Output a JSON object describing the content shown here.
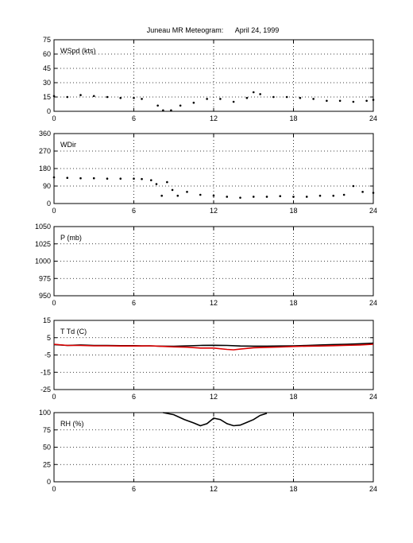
{
  "title": "Juneau MR Meteogram:      April 24, 1999",
  "chart_data": [
    {
      "type": "scatter",
      "label": "WSpd (kts)",
      "ylim": [
        0,
        75
      ],
      "yticks": [
        "0",
        "15",
        "30",
        "45",
        "60",
        "75"
      ],
      "xlim": [
        0,
        24
      ],
      "xticks": [
        "0",
        "6",
        "12",
        "18",
        "24"
      ],
      "grid": "dotted",
      "series": [
        {
          "color": "#000000",
          "x": [
            0,
            1,
            2,
            3,
            4,
            5,
            6,
            6.6,
            7.8,
            8.2,
            8.8,
            9.5,
            10.5,
            11.5,
            12.5,
            13.5,
            14.5,
            15,
            15.5,
            16.5,
            17.5,
            18.5,
            19.5,
            20.5,
            21.5,
            22.5,
            23.5,
            24
          ],
          "y": [
            16,
            15,
            17,
            16,
            15,
            14,
            14,
            13,
            6,
            1,
            1,
            6,
            9,
            13,
            13,
            10,
            14,
            20,
            18,
            15,
            15,
            14,
            13,
            11,
            11,
            10,
            11,
            12
          ]
        }
      ]
    },
    {
      "type": "scatter",
      "label": "WDir",
      "ylim": [
        0,
        360
      ],
      "yticks": [
        "0",
        "90",
        "180",
        "270",
        "360"
      ],
      "xlim": [
        0,
        24
      ],
      "xticks": [
        "0",
        "6",
        "12",
        "18",
        "24"
      ],
      "grid": "dotted",
      "series": [
        {
          "color": "#000000",
          "x": [
            0,
            1,
            2,
            3,
            4,
            5,
            6,
            6.6,
            7.3,
            7.7,
            8.1,
            8.5,
            8.9,
            9.3,
            10,
            11,
            12,
            13,
            14,
            15,
            16,
            17,
            18,
            19,
            20,
            21,
            21.8,
            22.5,
            23.2,
            24
          ],
          "y": [
            135,
            132,
            130,
            130,
            128,
            128,
            128,
            126,
            120,
            100,
            40,
            110,
            70,
            40,
            60,
            45,
            40,
            35,
            30,
            35,
            35,
            38,
            35,
            35,
            40,
            40,
            45,
            90,
            60,
            55
          ]
        }
      ]
    },
    {
      "type": "line",
      "label": "P (mb)",
      "ylim": [
        950,
        1050
      ],
      "yticks": [
        "950",
        "975",
        "1000",
        "1025",
        "1050"
      ],
      "xlim": [
        0,
        24
      ],
      "xticks": [
        "0",
        "6",
        "12",
        "18",
        "24"
      ],
      "grid": "dotted",
      "series": []
    },
    {
      "type": "line",
      "label": "T Td (C)",
      "ylim": [
        -25,
        15
      ],
      "yticks": [
        "-25",
        "-15",
        "-5",
        "5",
        "15"
      ],
      "xlim": [
        0,
        24
      ],
      "xticks": [
        "0",
        "6",
        "12",
        "18",
        "24"
      ],
      "grid": "dotted",
      "series": [
        {
          "color": "#000000",
          "x": [
            0,
            1,
            2,
            3,
            4,
            5,
            6,
            6.6,
            7.2,
            8,
            9,
            10,
            11,
            12,
            13,
            14,
            15,
            16,
            17,
            18,
            19,
            20,
            21,
            22,
            23,
            24
          ],
          "y": [
            1,
            0.5,
            0.8,
            0.5,
            0.5,
            0.4,
            0.4,
            0.3,
            0.3,
            0.1,
            0,
            0.3,
            0.5,
            0.6,
            0.5,
            0.2,
            0.1,
            0.1,
            0.2,
            0.3,
            0.5,
            0.8,
            1,
            1.2,
            1.5,
            1.8
          ]
        },
        {
          "color": "#dd0000",
          "x": [
            0,
            1,
            2,
            3,
            4,
            5,
            6,
            6.6,
            7.2,
            8,
            9,
            10,
            11,
            12,
            13,
            13.5,
            14,
            15,
            16,
            17,
            18,
            19,
            20,
            21,
            22,
            23,
            24
          ],
          "y": [
            1.2,
            0.5,
            0.5,
            0.3,
            0.3,
            0.2,
            0.2,
            0.2,
            0.3,
            0,
            -0.3,
            -0.5,
            -1,
            -1,
            -1.8,
            -2,
            -1.6,
            -0.8,
            -0.6,
            -0.4,
            -0.1,
            0.1,
            0.2,
            0.4,
            0.6,
            0.8,
            1.2
          ]
        }
      ]
    },
    {
      "type": "line",
      "label": "RH (%)",
      "ylim": [
        0,
        100
      ],
      "yticks": [
        "0",
        "25",
        "50",
        "75",
        "100"
      ],
      "xlim": [
        0,
        24
      ],
      "xticks": [
        "0",
        "6",
        "12",
        "18",
        "24"
      ],
      "grid": "dotted",
      "series": [
        {
          "color": "#000000",
          "x": [
            8.2,
            9,
            9.8,
            10.5,
            11,
            11.5,
            12,
            12.5,
            13,
            13.5,
            14,
            14.5,
            15,
            15.5,
            16
          ],
          "y": [
            100,
            97,
            90,
            85,
            81,
            84,
            92,
            90,
            84,
            81,
            82,
            86,
            90,
            96,
            99
          ]
        }
      ]
    }
  ]
}
